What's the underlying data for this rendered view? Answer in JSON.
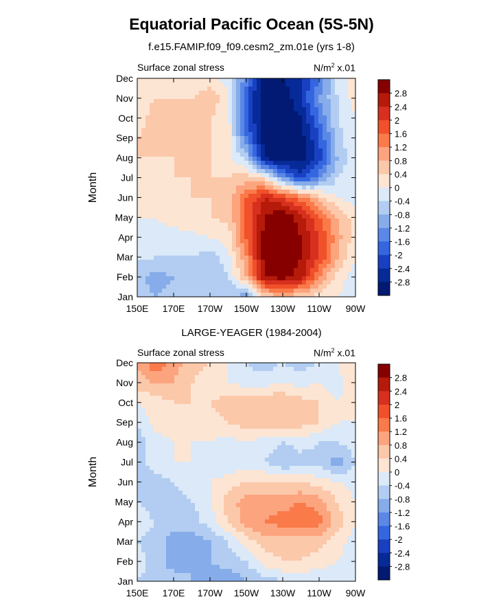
{
  "header": {
    "title": "Equatorial Pacific Ocean (5S-5N)",
    "subtitle": "f.e15.FAMIP.f09_f09.cesm2_zm.01e (yrs 1-8)"
  },
  "chart_data": [
    {
      "type": "heatmap",
      "title": "f.e15.FAMIP.f09_f09.cesm2_zm.01e (yrs 1-8)",
      "left_label": "Surface zonal stress",
      "units_base": "N/m",
      "units_exp": "2",
      "units_scale": " x.01",
      "ylabel": "Month",
      "x_ticks": [
        "150E",
        "170E",
        "170W",
        "150W",
        "130W",
        "110W",
        "90W"
      ],
      "x_values_deg_east": [
        150,
        170,
        190,
        210,
        230,
        250,
        270
      ],
      "y_ticks": [
        "Jan",
        "Feb",
        "Mar",
        "Apr",
        "May",
        "Jun",
        "Jul",
        "Aug",
        "Sep",
        "Oct",
        "Nov",
        "Dec"
      ],
      "colorbar_labels": [
        "2.8",
        "2.4",
        "2",
        "1.6",
        "1.2",
        "0.8",
        "0.4",
        "0",
        "-0.4",
        "-0.8",
        "-1.2",
        "-1.6",
        "-2",
        "-2.4",
        "-2.8"
      ],
      "colorbar_colors": [
        "#870000",
        "#b51a0a",
        "#d7301f",
        "#f0502a",
        "#fa7a4a",
        "#fca47e",
        "#fbc8aa",
        "#fde5d3",
        "#dbe9f8",
        "#b2cdf1",
        "#86acea",
        "#5b88e6",
        "#3466e0",
        "#1a40c2",
        "#062a97",
        "#021a73"
      ],
      "values_grid": {
        "lon": [
          150,
          160,
          170,
          180,
          190,
          200,
          210,
          220,
          230,
          240,
          250,
          260,
          270
        ],
        "months": [
          "Jan",
          "Feb",
          "Mar",
          "Apr",
          "May",
          "Jun",
          "Jul",
          "Aug",
          "Sep",
          "Oct",
          "Nov",
          "Dec"
        ],
        "rows": [
          [
            -0.6,
            -0.8,
            -0.6,
            -0.5,
            -0.5,
            -0.8,
            -1.0,
            0.4,
            0.8,
            0.4,
            0.2,
            0.0,
            -0.2
          ],
          [
            -0.7,
            -1.0,
            -0.8,
            -0.6,
            -0.6,
            -0.4,
            0.8,
            2.8,
            3.0,
            2.6,
            1.2,
            0.2,
            -0.2
          ],
          [
            -0.3,
            -0.4,
            -0.4,
            -0.4,
            -0.6,
            -0.2,
            1.2,
            3.0,
            3.2,
            2.8,
            2.0,
            0.8,
            0.0
          ],
          [
            -0.2,
            -0.2,
            -0.2,
            -0.1,
            0.0,
            0.2,
            1.6,
            3.0,
            3.2,
            2.8,
            2.0,
            1.0,
            0.2
          ],
          [
            0.0,
            0.0,
            0.2,
            0.3,
            0.4,
            0.5,
            1.6,
            2.8,
            3.2,
            2.6,
            1.6,
            0.8,
            0.2
          ],
          [
            0.0,
            0.2,
            0.3,
            0.4,
            0.4,
            0.6,
            1.6,
            2.4,
            2.0,
            1.4,
            0.6,
            0.0,
            -0.2
          ],
          [
            0.2,
            0.3,
            0.4,
            0.4,
            0.4,
            0.4,
            0.6,
            0.2,
            -1.2,
            -2.2,
            -1.4,
            -0.4,
            -0.2
          ],
          [
            0.4,
            0.4,
            0.4,
            0.4,
            0.4,
            0.2,
            -0.6,
            -2.8,
            -3.2,
            -3.0,
            -2.2,
            -0.8,
            0.0
          ],
          [
            0.4,
            0.6,
            0.6,
            0.5,
            0.4,
            0.2,
            -1.6,
            -3.0,
            -3.2,
            -3.0,
            -2.0,
            -0.6,
            0.0
          ],
          [
            0.2,
            0.6,
            0.6,
            0.6,
            0.4,
            0.2,
            -2.0,
            -3.0,
            -3.2,
            -2.8,
            -1.6,
            -0.4,
            0.0
          ],
          [
            0.2,
            0.4,
            0.4,
            0.4,
            0.6,
            0.2,
            -2.0,
            -3.2,
            -3.2,
            -2.4,
            -1.2,
            -0.4,
            0.2
          ],
          [
            0.0,
            0.2,
            0.2,
            0.2,
            0.2,
            -0.2,
            -1.4,
            -3.0,
            -2.8,
            -2.4,
            -1.6,
            -0.2,
            0.2
          ]
        ]
      }
    },
    {
      "type": "heatmap",
      "title": "LARGE-YEAGER (1984-2004)",
      "left_label": "Surface zonal stress",
      "units_base": "N/m",
      "units_exp": "2",
      "units_scale": " x.01",
      "ylabel": "Month",
      "x_ticks": [
        "150E",
        "170E",
        "170W",
        "150W",
        "130W",
        "110W",
        "90W"
      ],
      "x_values_deg_east": [
        150,
        170,
        190,
        210,
        230,
        250,
        270
      ],
      "y_ticks": [
        "Jan",
        "Feb",
        "Mar",
        "Apr",
        "May",
        "Jun",
        "Jul",
        "Aug",
        "Sep",
        "Oct",
        "Nov",
        "Dec"
      ],
      "colorbar_labels": [
        "2.8",
        "2.4",
        "2",
        "1.6",
        "1.2",
        "0.8",
        "0.4",
        "0",
        "-0.4",
        "-0.8",
        "-1.2",
        "-1.6",
        "-2",
        "-2.4",
        "-2.8"
      ],
      "colorbar_colors": [
        "#870000",
        "#b51a0a",
        "#d7301f",
        "#f0502a",
        "#fa7a4a",
        "#fca47e",
        "#fbc8aa",
        "#fde5d3",
        "#dbe9f8",
        "#b2cdf1",
        "#86acea",
        "#5b88e6",
        "#3466e0",
        "#1a40c2",
        "#062a97",
        "#021a73"
      ],
      "values_grid": {
        "lon": [
          150,
          160,
          170,
          180,
          190,
          200,
          210,
          220,
          230,
          240,
          250,
          260,
          270
        ],
        "months": [
          "Jan",
          "Feb",
          "Mar",
          "Apr",
          "May",
          "Jun",
          "Jul",
          "Aug",
          "Sep",
          "Oct",
          "Nov",
          "Dec"
        ],
        "rows": [
          [
            -0.4,
            -0.6,
            -0.6,
            -0.8,
            -1.0,
            -1.2,
            -0.8,
            -0.6,
            -0.4,
            -0.2,
            -0.4,
            -0.2,
            0.0
          ],
          [
            -0.2,
            -0.6,
            -1.0,
            -0.8,
            -0.8,
            -0.6,
            -0.4,
            0.2,
            0.4,
            0.4,
            0.2,
            0.0,
            -0.2
          ],
          [
            -0.4,
            -0.6,
            -1.0,
            -1.0,
            -0.8,
            -0.4,
            0.2,
            0.6,
            0.6,
            0.6,
            0.6,
            0.2,
            -0.2
          ],
          [
            -0.2,
            -0.4,
            -0.6,
            -0.6,
            -0.2,
            0.4,
            1.0,
            1.2,
            1.4,
            1.6,
            1.4,
            0.6,
            0.0
          ],
          [
            -0.4,
            -0.6,
            -0.6,
            -0.4,
            0.0,
            0.6,
            1.0,
            1.0,
            1.0,
            1.2,
            1.0,
            0.4,
            0.0
          ],
          [
            -0.4,
            -0.6,
            -0.4,
            -0.2,
            0.0,
            0.2,
            0.4,
            0.4,
            0.4,
            0.4,
            0.2,
            0.0,
            -0.2
          ],
          [
            -0.6,
            -0.2,
            0.0,
            0.0,
            -0.2,
            -0.4,
            -0.2,
            -0.4,
            -0.8,
            -0.6,
            -0.6,
            -1.0,
            -0.4
          ],
          [
            -0.6,
            -0.2,
            0.0,
            0.0,
            0.0,
            -0.2,
            0.0,
            -0.2,
            -0.4,
            -0.2,
            -0.4,
            -0.4,
            -0.2
          ],
          [
            -0.4,
            0.2,
            0.2,
            0.2,
            0.2,
            0.4,
            0.6,
            0.6,
            0.8,
            0.6,
            0.4,
            0.0,
            0.0
          ],
          [
            0.0,
            0.2,
            0.4,
            0.4,
            0.4,
            0.6,
            0.8,
            0.8,
            0.8,
            0.6,
            0.4,
            0.0,
            0.2
          ],
          [
            0.6,
            0.8,
            0.8,
            0.4,
            0.2,
            0.0,
            -0.2,
            -0.2,
            0.0,
            -0.2,
            0.0,
            -0.2,
            0.4
          ],
          [
            0.8,
            1.6,
            1.0,
            0.6,
            0.4,
            0.0,
            -0.4,
            -0.6,
            -0.4,
            -0.6,
            -0.4,
            0.0,
            0.4
          ]
        ]
      }
    }
  ]
}
